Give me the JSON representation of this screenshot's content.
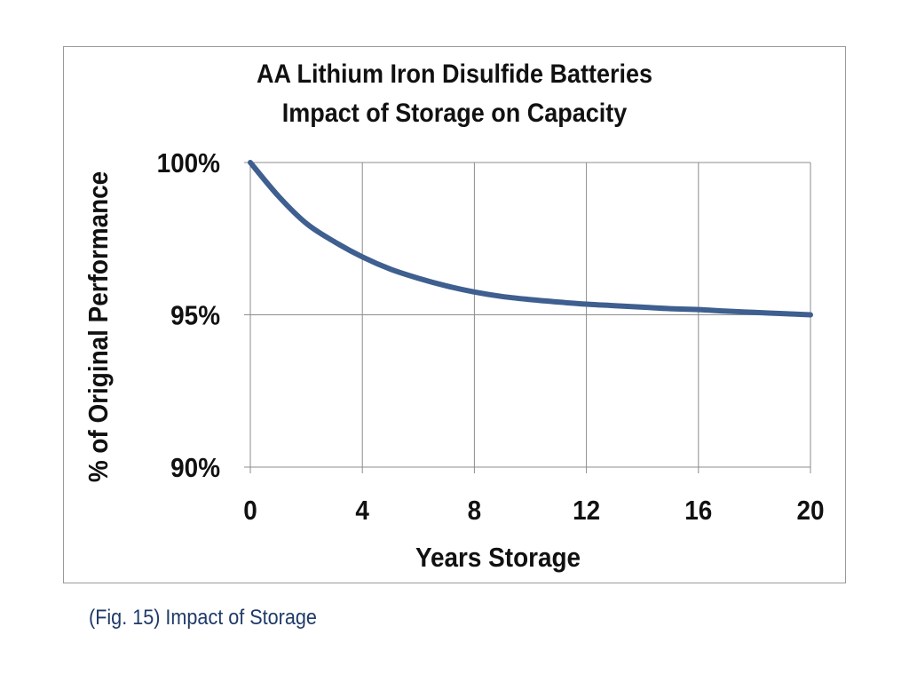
{
  "chart_data": {
    "type": "line",
    "title": "AA Lithium Iron Disulfide Batteries",
    "subtitle": "Impact of Storage on Capacity",
    "xlabel": "Years Storage",
    "ylabel": "% of Original Performance",
    "xlim": [
      0,
      20
    ],
    "ylim": [
      90,
      100
    ],
    "xticks": [
      0,
      4,
      8,
      12,
      16,
      20
    ],
    "xtick_labels": [
      "0",
      "4",
      "8",
      "12",
      "16",
      "20"
    ],
    "yticks": [
      90,
      95,
      100
    ],
    "ytick_labels": [
      "90%",
      "95%",
      "100%"
    ],
    "grid": true,
    "series": [
      {
        "color": "#3e5f8f",
        "x": [
          0,
          1,
          2,
          3,
          4,
          5,
          6,
          7,
          8,
          9,
          10,
          11,
          12,
          13,
          14,
          15,
          16,
          17,
          18,
          19,
          20
        ],
        "y": [
          100,
          98.9,
          98.0,
          97.4,
          96.9,
          96.5,
          96.2,
          95.95,
          95.75,
          95.6,
          95.5,
          95.42,
          95.35,
          95.3,
          95.25,
          95.2,
          95.17,
          95.12,
          95.08,
          95.04,
          95.0
        ]
      }
    ]
  },
  "caption": "(Fig. 15) Impact of Storage"
}
